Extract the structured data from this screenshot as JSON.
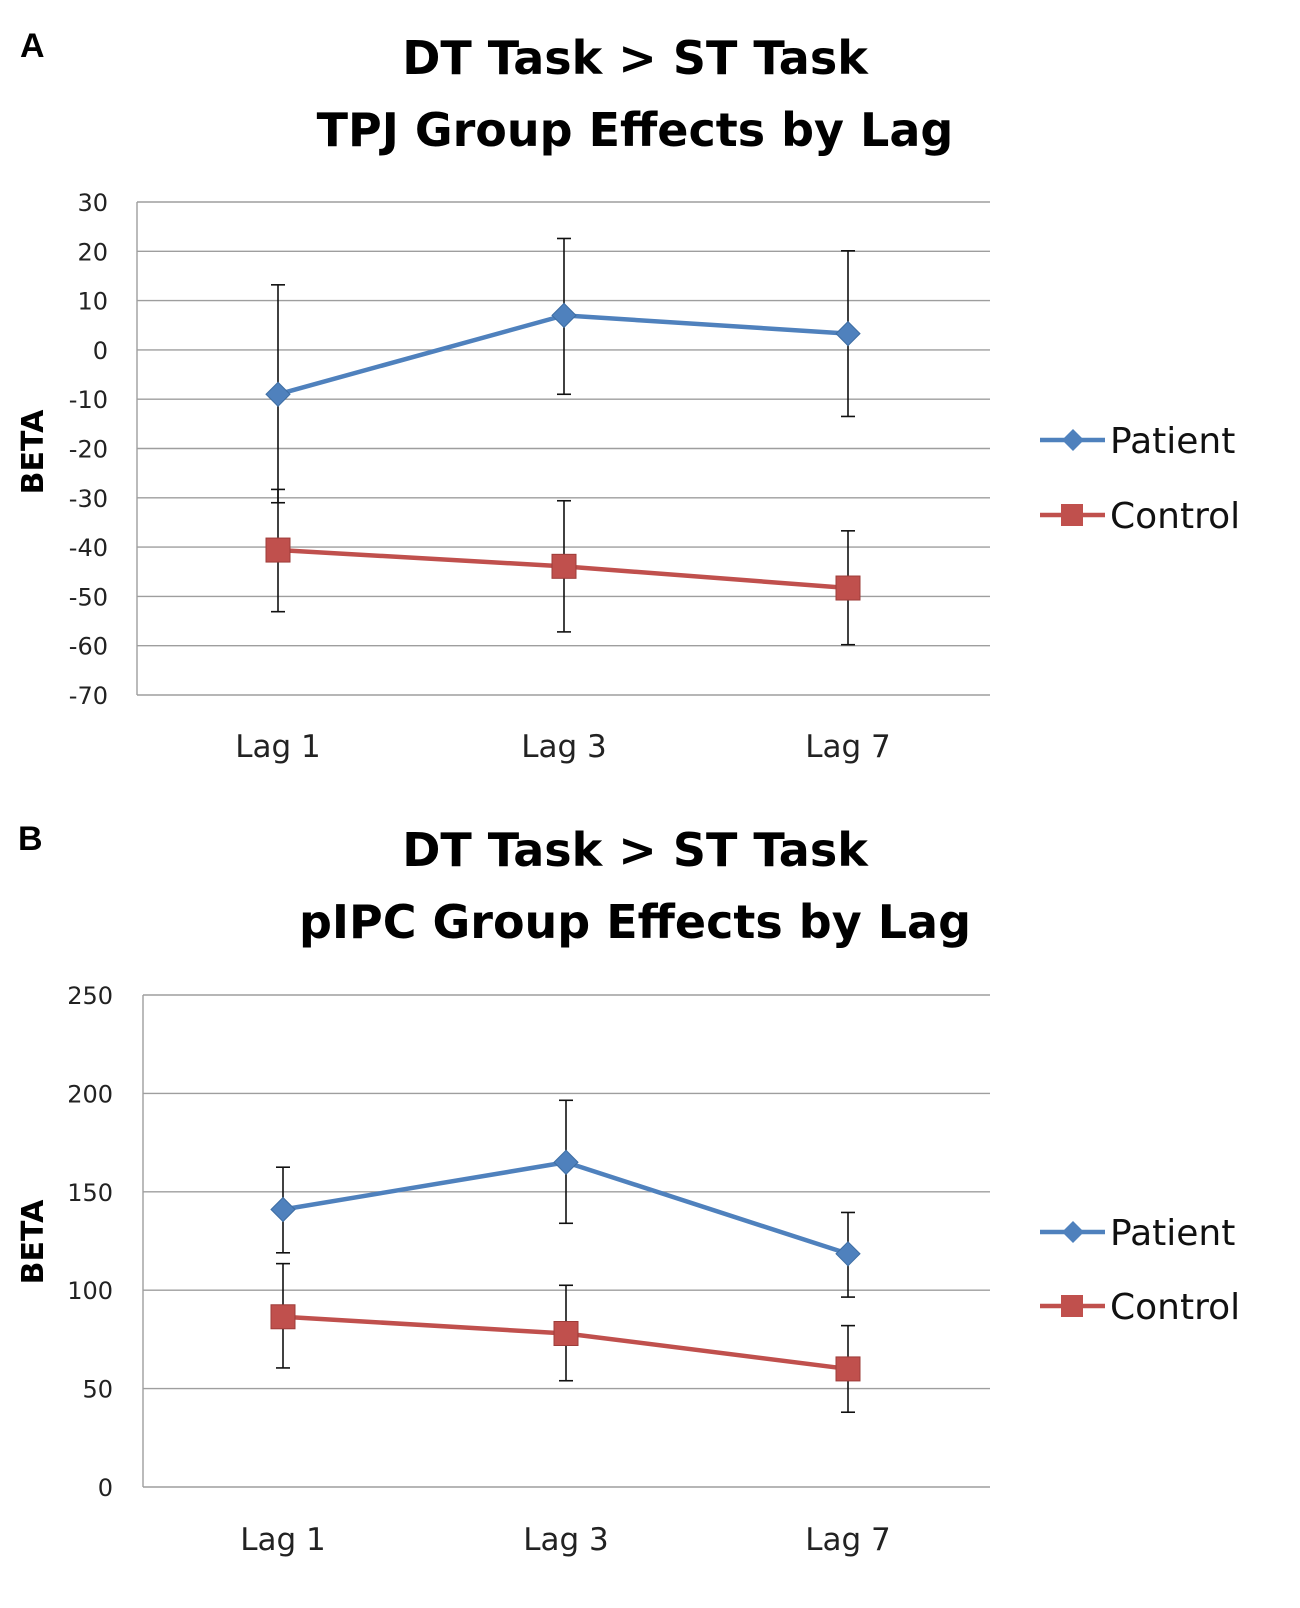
{
  "chart_data": [
    {
      "type": "line",
      "panel_label": "A",
      "title_lines": [
        "DT Task > ST Task",
        "TPJ Group Effects by Lag"
      ],
      "xlabel": "",
      "ylabel": "BETA",
      "categories": [
        "Lag 1",
        "Lag 3",
        "Lag 7"
      ],
      "ylim": [
        -70,
        30
      ],
      "yticks": [
        30,
        20,
        10,
        0,
        -10,
        -20,
        -30,
        -40,
        -50,
        -60,
        -70
      ],
      "grid": true,
      "legend_position": "right",
      "series": [
        {
          "name": "Patient",
          "marker": "diamond",
          "color": "#4f81bd",
          "values": [
            -9,
            7,
            3.3
          ],
          "error_low": [
            -31,
            -9,
            -13.5
          ],
          "error_high": [
            13.2,
            22.6,
            20.1
          ]
        },
        {
          "name": "Control",
          "marker": "square",
          "color": "#c0504d",
          "values": [
            -40.6,
            -43.9,
            -48.3
          ],
          "error_low": [
            -53.1,
            -57.2,
            -59.8
          ],
          "error_high": [
            -28.3,
            -30.6,
            -36.7
          ]
        }
      ]
    },
    {
      "type": "line",
      "panel_label": "B",
      "title_lines": [
        "DT Task > ST Task",
        "pIPC Group Effects by Lag"
      ],
      "xlabel": "",
      "ylabel": "BETA",
      "categories": [
        "Lag 1",
        "Lag 3",
        "Lag 7"
      ],
      "ylim": [
        0,
        250
      ],
      "yticks": [
        250,
        200,
        150,
        100,
        50,
        0
      ],
      "grid": true,
      "legend_position": "right",
      "series": [
        {
          "name": "Patient",
          "marker": "diamond",
          "color": "#4f81bd",
          "values": [
            141,
            165,
            118.5
          ],
          "error_low": [
            119,
            134,
            96.5
          ],
          "error_high": [
            162.5,
            196.5,
            139.5
          ]
        },
        {
          "name": "Control",
          "marker": "square",
          "color": "#c0504d",
          "values": [
            86.5,
            78,
            60
          ],
          "error_low": [
            60.5,
            54,
            38
          ],
          "error_high": [
            113.5,
            102.5,
            82
          ]
        }
      ]
    }
  ]
}
